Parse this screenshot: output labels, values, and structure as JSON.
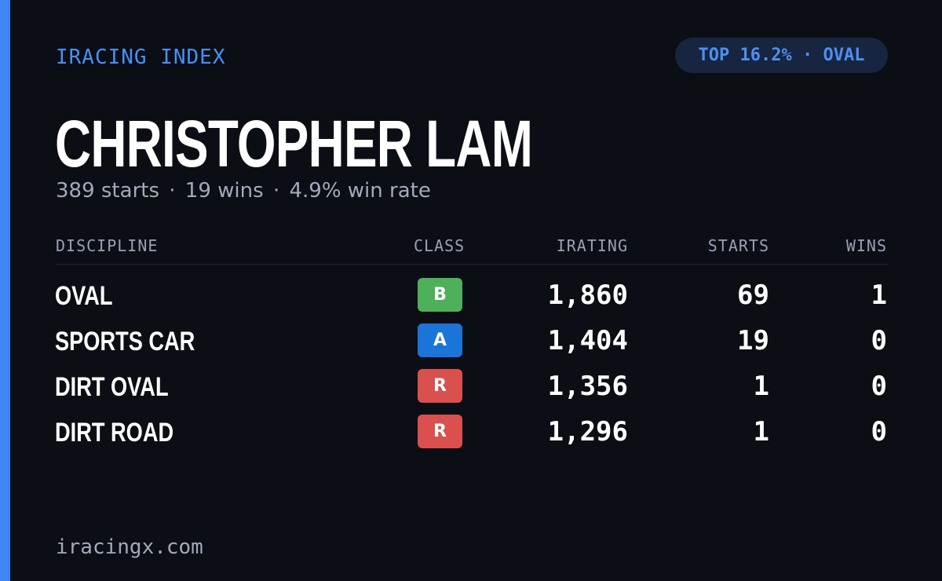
{
  "brand": "IRACING INDEX",
  "badge": {
    "text": "TOP 16.2% · OVAL"
  },
  "driver": {
    "name": "CHRISTOPHER LAM",
    "starts": "389 starts",
    "wins": "19 wins",
    "win_rate": "4.9% win rate",
    "separator": "·"
  },
  "table": {
    "headers": {
      "discipline": "DISCIPLINE",
      "class": "CLASS",
      "irating": "IRATING",
      "starts": "STARTS",
      "wins": "WINS"
    },
    "rows": [
      {
        "discipline": "OVAL",
        "class": "B",
        "class_color": "#4eb05a",
        "irating": "1,860",
        "starts": "69",
        "wins": "1"
      },
      {
        "discipline": "SPORTS CAR",
        "class": "A",
        "class_color": "#1b74d8",
        "irating": "1,404",
        "starts": "19",
        "wins": "0"
      },
      {
        "discipline": "DIRT OVAL",
        "class": "R",
        "class_color": "#d9504e",
        "irating": "1,356",
        "starts": "1",
        "wins": "0"
      },
      {
        "discipline": "DIRT ROAD",
        "class": "R",
        "class_color": "#d9504e",
        "irating": "1,296",
        "starts": "1",
        "wins": "0"
      }
    ]
  },
  "footer": "iracingx.com",
  "colors": {
    "background": "#0b0e15",
    "accent": "#3f86f5",
    "pill_bg": "#172540"
  }
}
